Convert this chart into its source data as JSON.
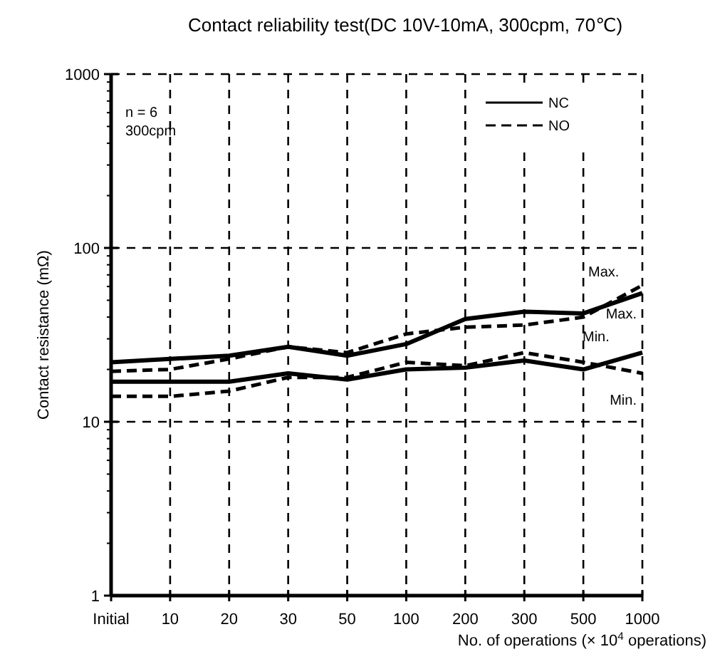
{
  "chart_data": {
    "type": "line",
    "title": "Contact reliability test(DC 10V-10mA, 300cpm, 70℃)",
    "xlabel": "No. of operations (× 10$^{4}$ operations)",
    "ylabel": "Contact resistance (mΩ)",
    "categories": [
      "Initial",
      "10",
      "20",
      "30",
      "50",
      "100",
      "200",
      "300",
      "500",
      "1000"
    ],
    "log": true,
    "ylim": [
      1,
      1000
    ],
    "yticks": [
      1,
      10,
      100,
      1000
    ],
    "grid": true,
    "legend": "top right",
    "marker": "none",
    "series": [
      {
        "name": "NC",
        "color": "#000000",
        "line_style": "solid",
        "values": [
          22,
          23,
          24,
          27,
          24,
          28,
          39,
          43,
          42,
          55
        ]
      },
      {
        "color": "#000000",
        "line_style": "solid",
        "values": [
          17,
          17,
          17,
          19,
          17.5,
          20,
          20.5,
          22.5,
          20,
          25
        ]
      },
      {
        "name": "NO",
        "color": "#000000",
        "line_style": "dashed",
        "values": [
          19.5,
          20,
          23,
          27,
          25,
          32,
          35,
          36,
          40,
          61
        ]
      },
      {
        "color": "#000000",
        "line_style": "dashed",
        "values": [
          14,
          14,
          15,
          18,
          18,
          22,
          21,
          25,
          22,
          19
        ]
      }
    ],
    "annotations": [
      "n = 6",
      "300cpm",
      {
        "text": "Max.",
        "x": "1000",
        "y": 61
      },
      {
        "text": "Max.",
        "x": "1000",
        "y": 55
      },
      {
        "text": "Min.",
        "x": "1000",
        "y": 25
      },
      {
        "text": "Min.",
        "x": "1000",
        "y": 19
      }
    ]
  }
}
